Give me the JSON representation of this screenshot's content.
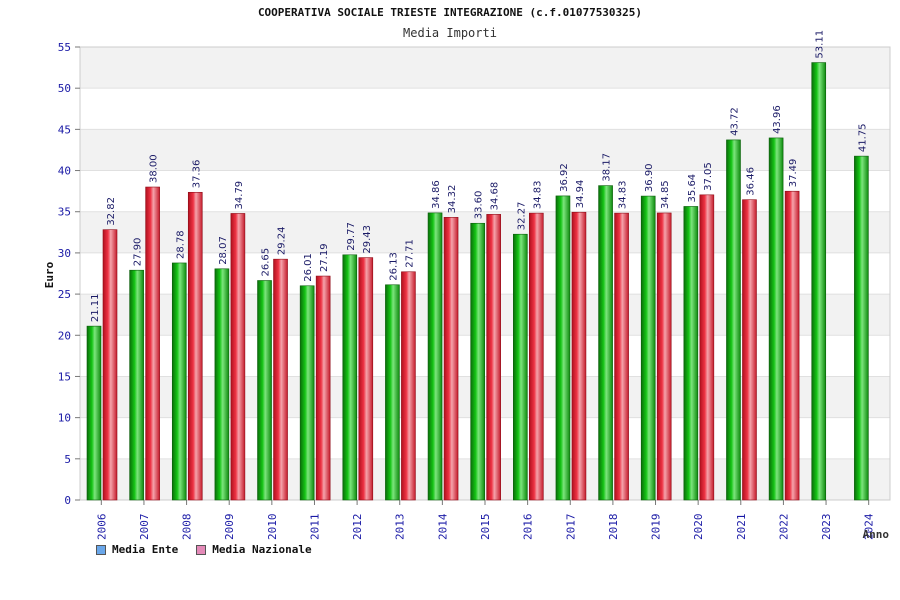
{
  "colors": {
    "ente": "#15b515",
    "nazionale": "#ee3344",
    "legend_ente": "#6aa7ea",
    "legend_nazionale": "#e48ab8",
    "axis_text": "#1a1aa6",
    "grid_band": "#f2f2f2"
  },
  "chart_data": {
    "type": "bar",
    "title": "COOPERATIVA SOCIALE TRIESTE INTEGRAZIONE (c.f.01077530325)",
    "subtitle": "Media Importi",
    "xlabel": "Anno",
    "ylabel": "Euro",
    "ylim": [
      0,
      55
    ],
    "yticks": [
      0,
      5,
      10,
      15,
      20,
      25,
      30,
      35,
      40,
      45,
      50,
      55
    ],
    "categories": [
      "2006",
      "2007",
      "2008",
      "2009",
      "2010",
      "2011",
      "2012",
      "2013",
      "2014",
      "2015",
      "2016",
      "2017",
      "2018",
      "2019",
      "2020",
      "2021",
      "2022",
      "2023",
      "2024"
    ],
    "series": [
      {
        "name": "Media Ente",
        "values": [
          21.11,
          27.9,
          28.78,
          28.07,
          26.65,
          26.01,
          29.77,
          26.13,
          34.86,
          33.6,
          32.27,
          36.92,
          38.17,
          36.9,
          35.64,
          43.72,
          43.96,
          53.11,
          41.75
        ],
        "labels": [
          "21.11",
          "27.90",
          "28.78",
          "28.07",
          "26.65",
          "26.01",
          "29.77",
          "26.13",
          "34.86",
          "33.60",
          "32.27",
          "36.92",
          "38.17",
          "36.90",
          "35.64",
          "43.72",
          "43.96",
          "53.11",
          "41.75"
        ]
      },
      {
        "name": "Media Nazionale",
        "values": [
          32.82,
          38.0,
          37.36,
          34.79,
          29.24,
          27.19,
          29.43,
          27.71,
          34.32,
          34.68,
          34.83,
          34.94,
          34.83,
          34.85,
          37.05,
          36.46,
          37.49,
          null,
          null
        ],
        "labels": [
          "32.82",
          "38.00",
          "37.36",
          "34.79",
          "29.24",
          "27.19",
          "29.43",
          "27.71",
          "34.32",
          "34.68",
          "34.83",
          "34.94",
          "34.83",
          "34.85",
          "37.05",
          "36.46",
          "37.49",
          null,
          null
        ]
      }
    ],
    "legend_position": "bottom-left"
  }
}
